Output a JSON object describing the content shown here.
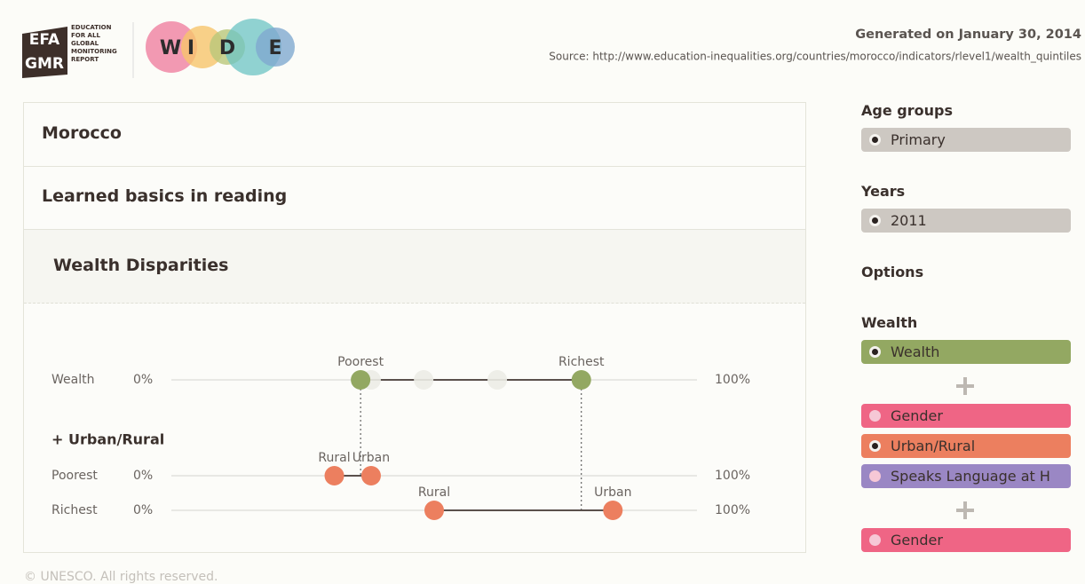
{
  "header": {
    "logo": [
      "EFA",
      "GMR"
    ],
    "logo_text": [
      "EDUCATION",
      "FOR ALL",
      "GLOBAL",
      "MONITORING",
      "REPORT"
    ],
    "wide": [
      "W",
      "I",
      "D",
      "E"
    ],
    "generated": "Generated on January 30, 2014",
    "source": "Source: http://www.education-inequalities.org/countries/morocco/indicators/rlevel1/wealth_quintiles"
  },
  "panel": {
    "country": "Morocco",
    "indicator": "Learned basics in reading",
    "section": "Wealth Disparities"
  },
  "chart_data": {
    "type": "dumbbell",
    "xlim": [
      0,
      100
    ],
    "xticks": [
      {
        "value": 0,
        "label": "0%"
      },
      {
        "value": 100,
        "label": "100%"
      }
    ],
    "subheading": "+ Urban/Rural",
    "rows": [
      {
        "label": "Wealth",
        "color": "#93a862",
        "inner_color": "#ecece6",
        "points": [
          {
            "name": "Poorest",
            "value": 36
          },
          {
            "name": null,
            "value": 38
          },
          {
            "name": null,
            "value": 48
          },
          {
            "name": null,
            "value": 62
          },
          {
            "name": "Richest",
            "value": 78
          }
        ]
      },
      {
        "label": "Poorest",
        "color": "#ec7f5f",
        "points": [
          {
            "name": "Rural",
            "value": 31
          },
          {
            "name": "Urban",
            "value": 38
          }
        ]
      },
      {
        "label": "Richest",
        "color": "#ec7f5f",
        "points": [
          {
            "name": "Rural",
            "value": 50
          },
          {
            "name": "Urban",
            "value": 84
          }
        ]
      }
    ]
  },
  "sidebar": {
    "groups": [
      {
        "title": "Age groups",
        "blocks": [
          [
            {
              "label": "Primary",
              "color": "#cdc8c2",
              "selected": true
            }
          ]
        ]
      },
      {
        "title": "Years",
        "blocks": [
          [
            {
              "label": "2011",
              "color": "#cdc8c2",
              "selected": true
            }
          ]
        ]
      },
      {
        "title": "Options",
        "blocks": []
      },
      {
        "title": "Wealth",
        "blocks": [
          [
            {
              "label": "Wealth",
              "color": "#93a862",
              "selected": true
            }
          ],
          [
            {
              "label": "Gender",
              "color": "#ef6585",
              "selected": false
            },
            {
              "label": "Urban/Rural",
              "color": "#ec7f5f",
              "selected": true
            },
            {
              "label": "Speaks Language at H",
              "color": "#9a87c4",
              "selected": false
            }
          ],
          [
            {
              "label": "Gender",
              "color": "#ef6585",
              "selected": false
            }
          ]
        ]
      }
    ]
  },
  "footer": "© UNESCO. All rights reserved."
}
